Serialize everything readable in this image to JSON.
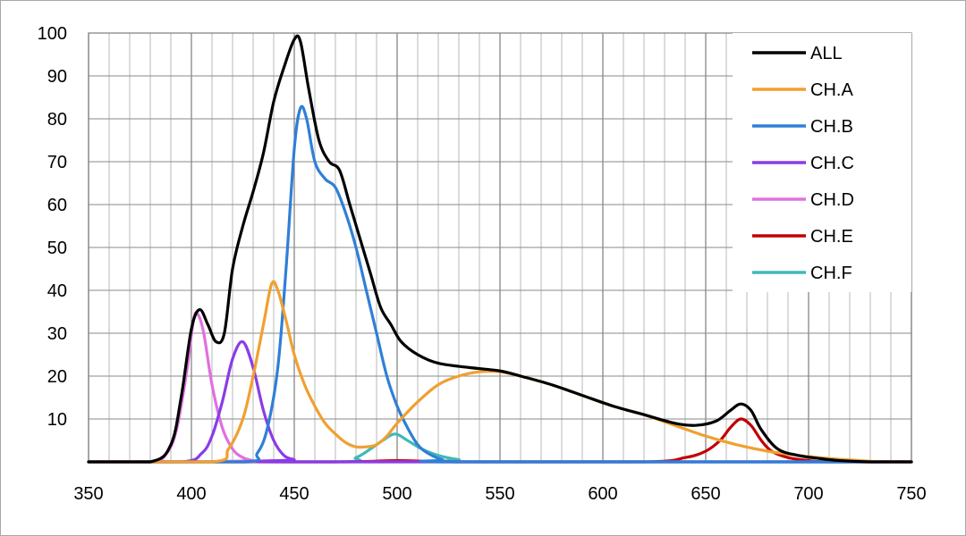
{
  "chart_data": {
    "type": "line",
    "title": "",
    "xlabel": "",
    "ylabel": "",
    "xlim": [
      350,
      750
    ],
    "ylim": [
      0,
      100
    ],
    "x_major_ticks": [
      350,
      400,
      450,
      500,
      550,
      600,
      650,
      700,
      750
    ],
    "x_minor_step": 10,
    "y_ticks": [
      10,
      20,
      30,
      40,
      50,
      60,
      70,
      80,
      90,
      100
    ],
    "grid": true,
    "legend_position": "top-right",
    "series": [
      {
        "name": "ALL",
        "color": "#000000",
        "points": [
          [
            350,
            0
          ],
          [
            380,
            0
          ],
          [
            390,
            4
          ],
          [
            395,
            15
          ],
          [
            400,
            31
          ],
          [
            404,
            35.5
          ],
          [
            408,
            32
          ],
          [
            412,
            28
          ],
          [
            416,
            30
          ],
          [
            420,
            45
          ],
          [
            425,
            55
          ],
          [
            430,
            63
          ],
          [
            435,
            72
          ],
          [
            440,
            84
          ],
          [
            445,
            92
          ],
          [
            450,
            98.5
          ],
          [
            453,
            98
          ],
          [
            457,
            87
          ],
          [
            462,
            75
          ],
          [
            467,
            70
          ],
          [
            472,
            68
          ],
          [
            477,
            60
          ],
          [
            482,
            52
          ],
          [
            487,
            44
          ],
          [
            492,
            36
          ],
          [
            497,
            32
          ],
          [
            502,
            28
          ],
          [
            510,
            25
          ],
          [
            520,
            23
          ],
          [
            535,
            22
          ],
          [
            550,
            21.2
          ],
          [
            560,
            20
          ],
          [
            575,
            18
          ],
          [
            590,
            15.5
          ],
          [
            605,
            13
          ],
          [
            620,
            11
          ],
          [
            635,
            9
          ],
          [
            645,
            8.5
          ],
          [
            655,
            9.5
          ],
          [
            662,
            12
          ],
          [
            667,
            13.5
          ],
          [
            672,
            12
          ],
          [
            677,
            7.5
          ],
          [
            685,
            3
          ],
          [
            695,
            1.5
          ],
          [
            705,
            0.8
          ],
          [
            715,
            0.3
          ],
          [
            730,
            0
          ],
          [
            750,
            0
          ]
        ]
      },
      {
        "name": "CH.A",
        "color": "#f0a030",
        "points": [
          [
            350,
            0
          ],
          [
            410,
            0
          ],
          [
            418,
            3
          ],
          [
            425,
            10
          ],
          [
            430,
            20
          ],
          [
            435,
            32
          ],
          [
            439,
            41.5
          ],
          [
            442,
            40
          ],
          [
            446,
            33
          ],
          [
            450,
            25
          ],
          [
            455,
            18
          ],
          [
            460,
            13
          ],
          [
            465,
            9
          ],
          [
            470,
            6.5
          ],
          [
            475,
            4.5
          ],
          [
            480,
            3.5
          ],
          [
            485,
            3.5
          ],
          [
            490,
            4
          ],
          [
            495,
            6
          ],
          [
            500,
            9
          ],
          [
            510,
            14
          ],
          [
            520,
            18
          ],
          [
            530,
            20
          ],
          [
            540,
            21
          ],
          [
            550,
            21
          ],
          [
            560,
            20
          ],
          [
            575,
            18
          ],
          [
            590,
            15.5
          ],
          [
            605,
            13
          ],
          [
            620,
            11
          ],
          [
            635,
            8.5
          ],
          [
            650,
            6
          ],
          [
            665,
            4
          ],
          [
            680,
            2.5
          ],
          [
            695,
            1.5
          ],
          [
            710,
            0.8
          ],
          [
            725,
            0.3
          ],
          [
            735,
            0
          ],
          [
            750,
            0
          ]
        ]
      },
      {
        "name": "CH.B",
        "color": "#2f7fd6",
        "points": [
          [
            350,
            0
          ],
          [
            425,
            0
          ],
          [
            432,
            2
          ],
          [
            437,
            8
          ],
          [
            442,
            22
          ],
          [
            446,
            45
          ],
          [
            450,
            73
          ],
          [
            453,
            82.5
          ],
          [
            456,
            80
          ],
          [
            460,
            70
          ],
          [
            465,
            66
          ],
          [
            470,
            64
          ],
          [
            475,
            58
          ],
          [
            480,
            50
          ],
          [
            485,
            40
          ],
          [
            490,
            30
          ],
          [
            495,
            20
          ],
          [
            500,
            13
          ],
          [
            505,
            8
          ],
          [
            510,
            4
          ],
          [
            515,
            2
          ],
          [
            522,
            0.5
          ],
          [
            530,
            0
          ],
          [
            750,
            0
          ]
        ]
      },
      {
        "name": "CH.C",
        "color": "#8a3ce6",
        "points": [
          [
            350,
            0
          ],
          [
            395,
            0
          ],
          [
            405,
            2
          ],
          [
            410,
            6
          ],
          [
            415,
            14
          ],
          [
            420,
            24
          ],
          [
            425,
            28
          ],
          [
            430,
            22
          ],
          [
            435,
            12
          ],
          [
            440,
            5
          ],
          [
            445,
            1.5
          ],
          [
            450,
            0.5
          ],
          [
            455,
            0
          ],
          [
            750,
            0
          ]
        ]
      },
      {
        "name": "CH.D",
        "color": "#e070e0",
        "points": [
          [
            350,
            0
          ],
          [
            380,
            0
          ],
          [
            388,
            2
          ],
          [
            393,
            8
          ],
          [
            398,
            22
          ],
          [
            401,
            33
          ],
          [
            403,
            34.5
          ],
          [
            406,
            30
          ],
          [
            410,
            18
          ],
          [
            415,
            8
          ],
          [
            420,
            3
          ],
          [
            425,
            1
          ],
          [
            430,
            0.3
          ],
          [
            435,
            0
          ],
          [
            750,
            0
          ]
        ]
      },
      {
        "name": "CH.E",
        "color": "#c00000",
        "points": [
          [
            350,
            0
          ],
          [
            470,
            0
          ],
          [
            500,
            0.3
          ],
          [
            530,
            0
          ],
          [
            620,
            0
          ],
          [
            640,
            1
          ],
          [
            650,
            2.5
          ],
          [
            657,
            5
          ],
          [
            662,
            8
          ],
          [
            667,
            10
          ],
          [
            672,
            8.5
          ],
          [
            677,
            5
          ],
          [
            682,
            2.5
          ],
          [
            690,
            1
          ],
          [
            700,
            0.3
          ],
          [
            710,
            0
          ],
          [
            750,
            0
          ]
        ]
      },
      {
        "name": "CH.F",
        "color": "#40b8b8",
        "points": [
          [
            350,
            0
          ],
          [
            470,
            0
          ],
          [
            480,
            1
          ],
          [
            487,
            3
          ],
          [
            493,
            5
          ],
          [
            499,
            6.5
          ],
          [
            505,
            5
          ],
          [
            512,
            3
          ],
          [
            520,
            1.5
          ],
          [
            530,
            0.5
          ],
          [
            540,
            0
          ],
          [
            750,
            0
          ]
        ]
      }
    ]
  }
}
